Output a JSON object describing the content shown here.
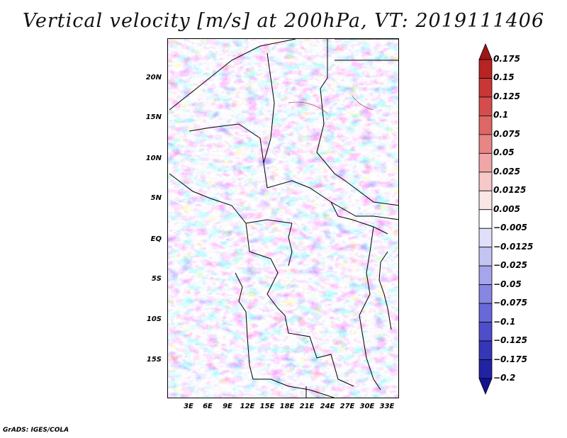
{
  "title": "Vertical velocity [m/s] at 200hPa, VT: 2019111406",
  "credit": "GrADS: IGES/COLA",
  "map": {
    "lat_labels": [
      "20N",
      "15N",
      "10N",
      "5N",
      "EQ",
      "5S",
      "10S",
      "15S"
    ],
    "lon_labels": [
      "3E",
      "6E",
      "9E",
      "12E",
      "15E",
      "18E",
      "21E",
      "24E",
      "27E",
      "30E",
      "33E"
    ],
    "field": "vertical velocity",
    "positive_color": "#d9504c",
    "negative_color": "#5b5bd6"
  },
  "colorbar": {
    "labels": [
      "0.175",
      "0.15",
      "0.125",
      "0.1",
      "0.075",
      "0.05",
      "0.025",
      "0.0125",
      "0.005",
      "-0.005",
      "-0.0125",
      "-0.025",
      "-0.05",
      "-0.075",
      "-0.1",
      "-0.125",
      "-0.175",
      "-0.2"
    ],
    "colors": [
      "#a01616",
      "#b82323",
      "#c93636",
      "#d54c4c",
      "#df6666",
      "#e88585",
      "#f0a6a6",
      "#f7c8c8",
      "#fbe6e6",
      "#ffffff",
      "#e0e0fb",
      "#c4c4f3",
      "#a5a5ec",
      "#8686e3",
      "#6868d9",
      "#4e4ecb",
      "#3636b8",
      "#2222a4",
      "#141490"
    ]
  }
}
